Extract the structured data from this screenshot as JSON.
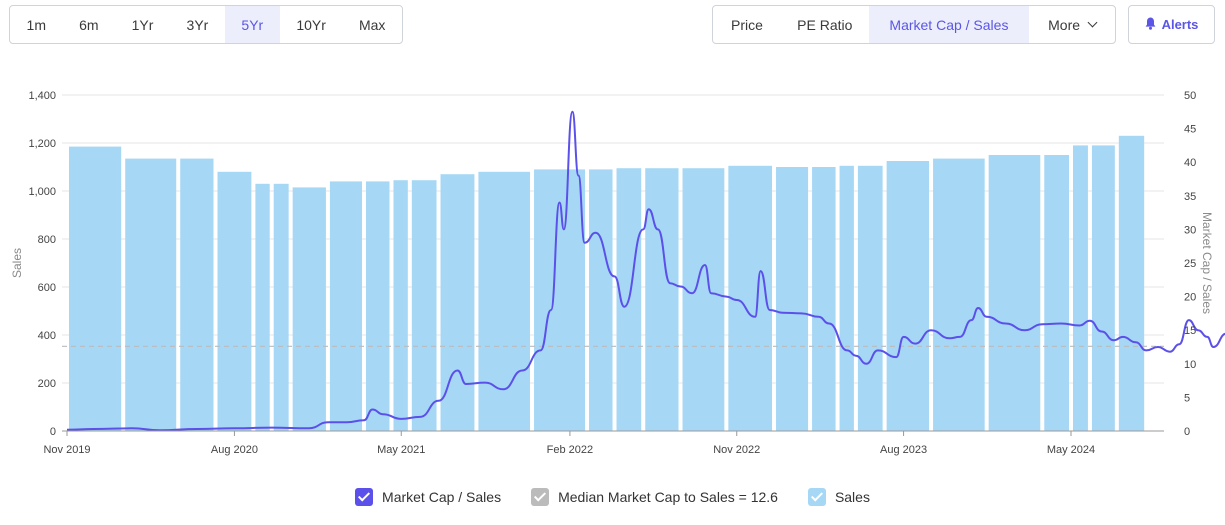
{
  "range_tabs": [
    {
      "label": "1m",
      "active": false
    },
    {
      "label": "6m",
      "active": false
    },
    {
      "label": "1Yr",
      "active": false
    },
    {
      "label": "3Yr",
      "active": false
    },
    {
      "label": "5Yr",
      "active": true
    },
    {
      "label": "10Yr",
      "active": false
    },
    {
      "label": "Max",
      "active": false
    }
  ],
  "metric_tabs": {
    "price": "Price",
    "pe_ratio": "PE Ratio",
    "market_cap_sales": "Market Cap / Sales",
    "more": "More",
    "active": "market_cap_sales"
  },
  "alerts_label": "Alerts",
  "icons": {
    "alerts": "bell-icon",
    "more": "chevron-down-icon"
  },
  "colors": {
    "accent": "#5b56e6",
    "bar": "#a6d8f5",
    "line": "#5b50ea",
    "median": "#bbbbbb"
  },
  "legend": {
    "line": "Market Cap / Sales",
    "median": "Median Market Cap to Sales = 12.6",
    "bars": "Sales"
  },
  "chart_data": {
    "type": "bar",
    "ylabel": "Sales",
    "y2label": "Market Cap / Sales",
    "ylim": [
      0,
      1400
    ],
    "y2lim": [
      0,
      50
    ],
    "y_ticks": [
      "0",
      "200",
      "400",
      "600",
      "800",
      "1,000",
      "1,200",
      "1,400"
    ],
    "y2_ticks": [
      "0",
      "5",
      "10",
      "15",
      "20",
      "25",
      "30",
      "35",
      "40",
      "45",
      "50"
    ],
    "x_ticks": [
      "Nov 2019",
      "Aug 2020",
      "May 2021",
      "Feb 2022",
      "Nov 2022",
      "Aug 2023",
      "May 2024"
    ],
    "x_start": "2019-11-01",
    "x_end": "2024-11-01",
    "grid": true,
    "legend_position": "bottom",
    "median": 12.6,
    "bars": [
      {
        "start": "2019-11-01",
        "end": "2020-02-01",
        "value": 1185
      },
      {
        "start": "2020-02-01",
        "end": "2020-05-01",
        "value": 1135
      },
      {
        "start": "2020-05-01",
        "end": "2020-07-01",
        "value": 1135
      },
      {
        "start": "2020-07-01",
        "end": "2020-09-01",
        "value": 1080
      },
      {
        "start": "2020-09-01",
        "end": "2020-10-01",
        "value": 1030
      },
      {
        "start": "2020-10-01",
        "end": "2020-11-01",
        "value": 1030
      },
      {
        "start": "2020-11-01",
        "end": "2021-01-01",
        "value": 1015
      },
      {
        "start": "2021-01-01",
        "end": "2021-03-01",
        "value": 1040
      },
      {
        "start": "2021-03-01",
        "end": "2021-04-15",
        "value": 1040
      },
      {
        "start": "2021-04-15",
        "end": "2021-05-15",
        "value": 1045
      },
      {
        "start": "2021-05-15",
        "end": "2021-07-01",
        "value": 1045
      },
      {
        "start": "2021-07-01",
        "end": "2021-09-01",
        "value": 1070
      },
      {
        "start": "2021-09-01",
        "end": "2021-12-01",
        "value": 1080
      },
      {
        "start": "2021-12-01",
        "end": "2022-03-01",
        "value": 1090
      },
      {
        "start": "2022-03-01",
        "end": "2022-04-15",
        "value": 1090
      },
      {
        "start": "2022-04-15",
        "end": "2022-06-01",
        "value": 1095
      },
      {
        "start": "2022-06-01",
        "end": "2022-08-01",
        "value": 1095
      },
      {
        "start": "2022-08-01",
        "end": "2022-10-15",
        "value": 1095
      },
      {
        "start": "2022-10-15",
        "end": "2023-01-01",
        "value": 1105
      },
      {
        "start": "2023-01-01",
        "end": "2023-03-01",
        "value": 1100
      },
      {
        "start": "2023-03-01",
        "end": "2023-04-15",
        "value": 1100
      },
      {
        "start": "2023-04-15",
        "end": "2023-05-15",
        "value": 1105
      },
      {
        "start": "2023-05-15",
        "end": "2023-07-01",
        "value": 1105
      },
      {
        "start": "2023-07-01",
        "end": "2023-09-15",
        "value": 1125
      },
      {
        "start": "2023-09-15",
        "end": "2023-12-15",
        "value": 1135
      },
      {
        "start": "2023-12-15",
        "end": "2024-03-15",
        "value": 1150
      },
      {
        "start": "2024-03-15",
        "end": "2024-05-01",
        "value": 1150
      },
      {
        "start": "2024-05-01",
        "end": "2024-06-01",
        "value": 1190
      },
      {
        "start": "2024-06-01",
        "end": "2024-07-15",
        "value": 1190
      },
      {
        "start": "2024-07-15",
        "end": "2024-09-01",
        "value": 1230
      }
    ],
    "line": [
      [
        "2019-11-01",
        0.2
      ],
      [
        "2019-12-15",
        0.3
      ],
      [
        "2020-02-15",
        0.4
      ],
      [
        "2020-04-01",
        0.1
      ],
      [
        "2020-06-01",
        0.3
      ],
      [
        "2020-08-01",
        0.4
      ],
      [
        "2020-10-01",
        0.5
      ],
      [
        "2020-12-01",
        0.4
      ],
      [
        "2021-01-01",
        1.3
      ],
      [
        "2021-02-01",
        1.3
      ],
      [
        "2021-03-01",
        1.6
      ],
      [
        "2021-03-15",
        3.2
      ],
      [
        "2021-04-01",
        2.5
      ],
      [
        "2021-05-01",
        1.8
      ],
      [
        "2021-06-01",
        2.1
      ],
      [
        "2021-07-01",
        4.5
      ],
      [
        "2021-08-01",
        9.0
      ],
      [
        "2021-08-15",
        7.0
      ],
      [
        "2021-09-15",
        7.2
      ],
      [
        "2021-10-15",
        6.2
      ],
      [
        "2021-11-15",
        9.0
      ],
      [
        "2021-12-15",
        12.0
      ],
      [
        "2022-01-01",
        18.0
      ],
      [
        "2022-01-15",
        34.0
      ],
      [
        "2022-01-22",
        30.0
      ],
      [
        "2022-02-05",
        47.5
      ],
      [
        "2022-02-15",
        38.0
      ],
      [
        "2022-02-25",
        28.0
      ],
      [
        "2022-03-15",
        29.5
      ],
      [
        "2022-04-15",
        23.0
      ],
      [
        "2022-05-01",
        18.5
      ],
      [
        "2022-06-01",
        30.0
      ],
      [
        "2022-06-10",
        33.0
      ],
      [
        "2022-06-25",
        30.0
      ],
      [
        "2022-07-15",
        22.0
      ],
      [
        "2022-08-01",
        21.5
      ],
      [
        "2022-08-20",
        20.5
      ],
      [
        "2022-09-10",
        24.7
      ],
      [
        "2022-09-20",
        20.5
      ],
      [
        "2022-10-15",
        20.0
      ],
      [
        "2022-11-01",
        19.5
      ],
      [
        "2022-12-01",
        17.0
      ],
      [
        "2022-12-10",
        23.8
      ],
      [
        "2022-12-25",
        18.0
      ],
      [
        "2023-01-15",
        17.6
      ],
      [
        "2023-02-15",
        17.5
      ],
      [
        "2023-03-15",
        17.0
      ],
      [
        "2023-04-01",
        16.0
      ],
      [
        "2023-05-01",
        12.0
      ],
      [
        "2023-05-15",
        11.2
      ],
      [
        "2023-06-01",
        10.0
      ],
      [
        "2023-06-20",
        12.0
      ],
      [
        "2023-07-20",
        11.0
      ],
      [
        "2023-08-01",
        14.0
      ],
      [
        "2023-08-20",
        13.0
      ],
      [
        "2023-09-15",
        15.0
      ],
      [
        "2023-10-15",
        13.8
      ],
      [
        "2023-11-01",
        14.0
      ],
      [
        "2023-11-20",
        16.5
      ],
      [
        "2023-12-01",
        18.3
      ],
      [
        "2023-12-15",
        17.0
      ],
      [
        "2024-01-15",
        16.0
      ],
      [
        "2024-02-15",
        15.0
      ],
      [
        "2024-03-15",
        15.9
      ],
      [
        "2024-04-15",
        16.0
      ],
      [
        "2024-05-15",
        15.7
      ],
      [
        "2024-06-01",
        16.4
      ],
      [
        "2024-06-20",
        14.8
      ],
      [
        "2024-07-10",
        13.5
      ],
      [
        "2024-07-25",
        14.0
      ],
      [
        "2024-08-15",
        13.2
      ],
      [
        "2024-09-01",
        12.0
      ],
      [
        "2024-09-20",
        12.5
      ],
      [
        "2024-10-10",
        11.8
      ],
      [
        "2024-10-25",
        12.9
      ],
      [
        "2024-11-10",
        16.5
      ],
      [
        "2024-11-25",
        15.0
      ],
      [
        "2024-12-10",
        14.0
      ],
      [
        "2024-12-20",
        12.5
      ],
      [
        "2025-01-10",
        14.5
      ],
      [
        "2025-01-25",
        13.6
      ],
      [
        "2025-02-05",
        13.0
      ],
      [
        "2025-02-15",
        12.8
      ]
    ]
  }
}
